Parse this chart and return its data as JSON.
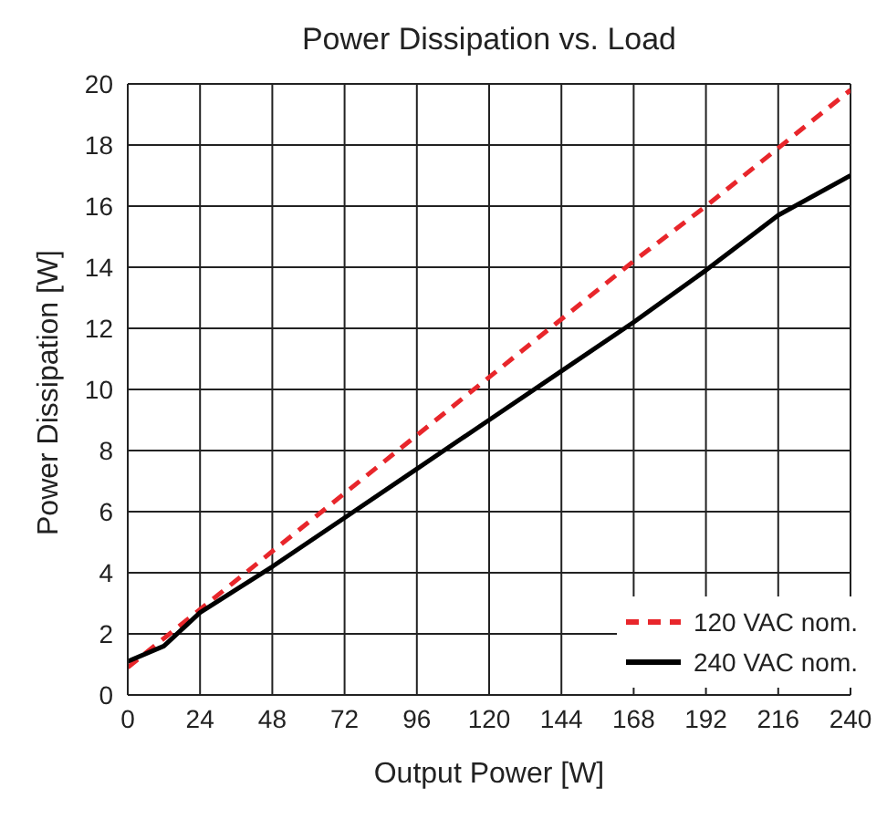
{
  "chart_data": {
    "type": "line",
    "title": "Power Dissipation vs. Load",
    "xlabel": "Output Power [W]",
    "ylabel": "Power Dissipation [W]",
    "series": [
      {
        "name": "120 VAC nom.",
        "color": "#e8262b",
        "line_style": "dashed",
        "x": [
          0,
          24,
          48,
          72,
          96,
          120,
          144,
          168,
          192,
          216,
          240
        ],
        "values": [
          0.9,
          2.8,
          4.7,
          6.6,
          8.5,
          10.4,
          12.3,
          14.2,
          16.0,
          17.9,
          19.8
        ]
      },
      {
        "name": "240 VAC nom.",
        "color": "#000000",
        "line_style": "solid",
        "x": [
          0,
          12,
          24,
          48,
          72,
          96,
          120,
          144,
          168,
          192,
          216,
          240
        ],
        "values": [
          1.1,
          1.6,
          2.7,
          4.2,
          5.8,
          7.4,
          9.0,
          10.6,
          12.2,
          13.9,
          15.7,
          17.0
        ]
      }
    ],
    "xlim": [
      0,
      240
    ],
    "xticks": [
      0,
      24,
      48,
      72,
      96,
      120,
      144,
      168,
      192,
      216,
      240
    ],
    "ylim": [
      0,
      20
    ],
    "yticks": [
      0,
      2,
      4,
      6,
      8,
      10,
      12,
      14,
      16,
      18,
      20
    ],
    "grid": true,
    "legend": "bottom right",
    "marker": "none"
  }
}
